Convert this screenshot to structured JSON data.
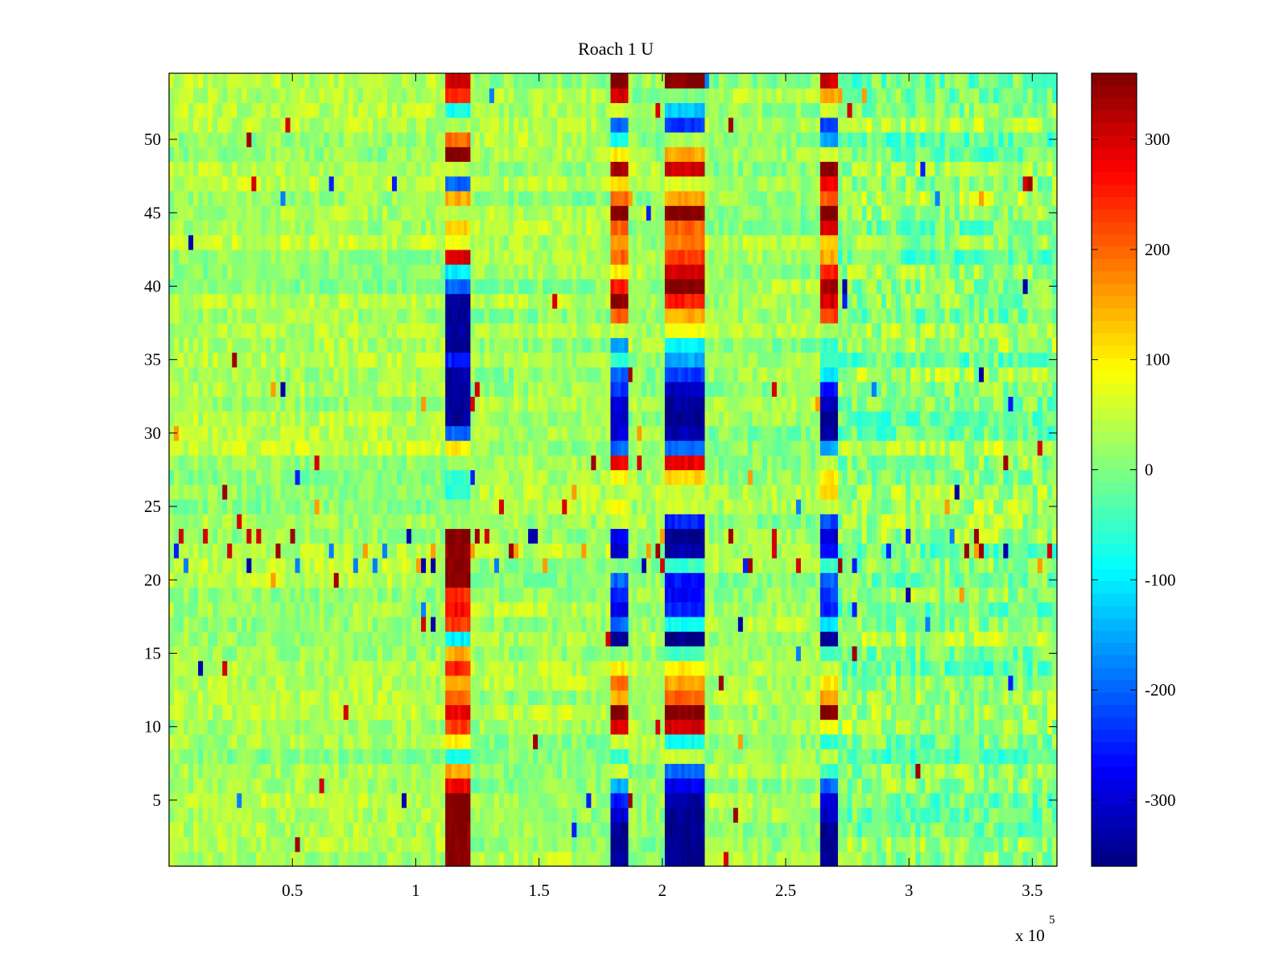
{
  "chart_data": {
    "type": "heatmap",
    "title": "Roach 1 U",
    "colormap": "jet",
    "xlim": [
      0,
      360000
    ],
    "ylim": [
      0.5,
      54.5
    ],
    "clim": [
      -360,
      360
    ],
    "rows": 54,
    "x_ticks": [
      50000,
      100000,
      150000,
      200000,
      250000,
      300000,
      350000
    ],
    "x_tick_labels": [
      "0.5",
      "1",
      "1.5",
      "2",
      "2.5",
      "3",
      "3.5"
    ],
    "x_exponent_label": "x 10",
    "x_exponent_power": "5",
    "y_ticks": [
      5,
      10,
      15,
      20,
      25,
      30,
      35,
      40,
      45,
      50
    ],
    "y_tick_labels": [
      "5",
      "10",
      "15",
      "20",
      "25",
      "30",
      "35",
      "40",
      "45",
      "50"
    ],
    "colorbar_ticks": [
      300,
      200,
      100,
      0,
      -100,
      -200,
      -300
    ],
    "colorbar_tick_labels": [
      "300",
      "200",
      "100",
      "0",
      "-100",
      "-200",
      "-300"
    ],
    "background_segments": [
      {
        "x_start": 0,
        "x_end": 112000,
        "mean": 25,
        "spread": 45
      },
      {
        "x_start": 122000,
        "x_end": 179000,
        "mean": 25,
        "spread": 45
      },
      {
        "x_start": 186000,
        "x_end": 201000,
        "mean": 20,
        "spread": 45
      },
      {
        "x_start": 217000,
        "x_end": 264000,
        "mean": 20,
        "spread": 45
      },
      {
        "x_start": 271000,
        "x_end": 360000,
        "mean": 0,
        "spread": 70
      }
    ],
    "noisy_rows": {
      "rows": [
        21,
        22,
        23
      ],
      "spike_values": [
        -330,
        -250,
        300,
        340,
        160,
        -180
      ]
    },
    "bands": [
      {
        "name": "band-1.15e5",
        "x_start": 112000,
        "x_end": 122000,
        "column_values_by_row": [
          360,
          360,
          360,
          360,
          360,
          270,
          150,
          -80,
          100,
          230,
          280,
          200,
          150,
          250,
          150,
          -100,
          230,
          270,
          240,
          360,
          360,
          350,
          360,
          20,
          0,
          -60,
          -50,
          20,
          100,
          -200,
          -340,
          -340,
          -340,
          -340,
          -250,
          -340,
          -340,
          -340,
          -340,
          -200,
          -100,
          300,
          80,
          130,
          40,
          150,
          -200,
          40,
          360,
          200,
          30,
          -80,
          250,
          300
        ]
      },
      {
        "name": "band-1.82e5",
        "x_start": 179000,
        "x_end": 186000,
        "column_values_by_row": [
          -350,
          -350,
          -350,
          -300,
          -250,
          -150,
          50,
          -60,
          50,
          300,
          350,
          150,
          200,
          100,
          0,
          -350,
          -200,
          -280,
          -250,
          -200,
          0,
          -300,
          -280,
          50,
          80,
          30,
          100,
          280,
          -200,
          -300,
          -320,
          -300,
          -230,
          -200,
          -50,
          -150,
          50,
          200,
          350,
          250,
          100,
          200,
          150,
          200,
          360,
          200,
          120,
          330,
          100,
          -80,
          -200,
          50,
          300,
          360
        ]
      },
      {
        "name": "band-2.09e5",
        "x_start": 201000,
        "x_end": 217000,
        "column_values_by_row": [
          -350,
          -350,
          -350,
          -350,
          -330,
          -280,
          -200,
          50,
          -80,
          300,
          360,
          200,
          150,
          100,
          -50,
          -350,
          -80,
          -250,
          -270,
          -260,
          -50,
          -330,
          -350,
          -250,
          50,
          50,
          120,
          280,
          -200,
          -330,
          -350,
          -340,
          -320,
          -230,
          -150,
          -100,
          80,
          150,
          250,
          360,
          300,
          230,
          180,
          200,
          360,
          150,
          60,
          300,
          150,
          30,
          -230,
          -130,
          0,
          360
        ]
      },
      {
        "name": "band-2.68e5",
        "x_start": 264000,
        "x_end": 271000,
        "column_values_by_row": [
          -350,
          -350,
          -350,
          -320,
          -300,
          -200,
          -50,
          50,
          -60,
          80,
          360,
          150,
          100,
          50,
          -50,
          -340,
          -100,
          -250,
          -230,
          -200,
          -50,
          -280,
          -300,
          -220,
          50,
          120,
          100,
          40,
          -150,
          -340,
          -350,
          -330,
          -260,
          -100,
          -60,
          -50,
          20,
          230,
          300,
          340,
          250,
          150,
          120,
          300,
          360,
          200,
          280,
          360,
          60,
          -160,
          -220,
          50,
          150,
          300
        ]
      }
    ]
  }
}
